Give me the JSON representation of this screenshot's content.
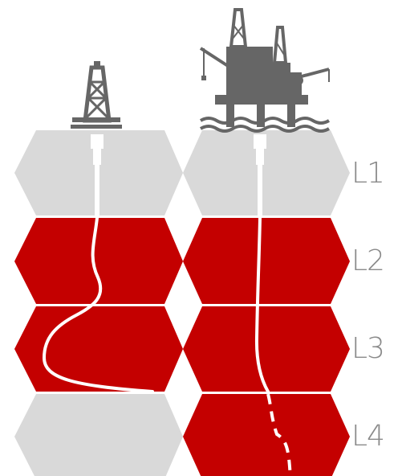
{
  "colors": {
    "accent": "#c40000",
    "inactive": "#d9d9d9",
    "label": "#8a8a8a",
    "equipment": "#666666",
    "well": "#ffffff"
  },
  "icons": [
    "onshore-oil-derrick-icon",
    "offshore-oil-platform-icon"
  ],
  "levels": [
    {
      "label": "L1",
      "left_cell": "inactive",
      "right_cell": "inactive"
    },
    {
      "label": "L2",
      "left_cell": "active",
      "right_cell": "active"
    },
    {
      "label": "L3",
      "left_cell": "active",
      "right_cell": "active"
    },
    {
      "label": "L4",
      "left_cell": "inactive",
      "right_cell": "active"
    }
  ]
}
